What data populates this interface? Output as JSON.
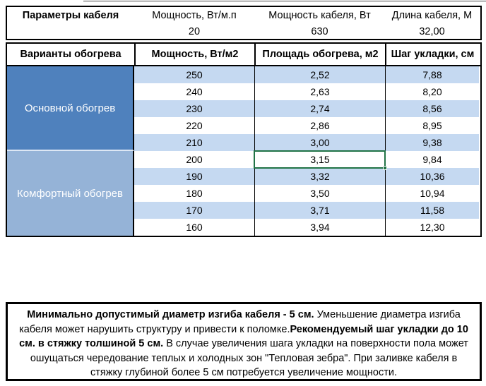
{
  "colors": {
    "primary_blue": "#4F81BD",
    "comfort_blue": "#95B3D7",
    "band_blue": "#C5D9F1",
    "row_white": "#FFFFFF",
    "selection_green": "#217346",
    "border_black": "#000000"
  },
  "top_info": {
    "title": "Параметры кабеля",
    "columns": [
      {
        "label": "Мощность, Вт/м.п",
        "value": "20"
      },
      {
        "label": "Мощность кабеля, Вт",
        "value": "630"
      },
      {
        "label": "Длина кабеля, М",
        "value": "32,00"
      }
    ]
  },
  "heating_table": {
    "headers": [
      "Варианты обогрева",
      "Мощность, Вт/м2",
      "Площадь обогрева, м2",
      "Шаг укладки, см"
    ],
    "groups": [
      {
        "label": "Основной обогрев",
        "color": "#4F81BD",
        "rows": [
          [
            "250",
            "2,52",
            "7,88"
          ],
          [
            "240",
            "2,63",
            "8,20"
          ],
          [
            "230",
            "2,74",
            "8,56"
          ],
          [
            "220",
            "2,86",
            "8,95"
          ],
          [
            "210",
            "3,00",
            "9,38"
          ]
        ]
      },
      {
        "label": "Комфортный обогрев",
        "color": "#95B3D7",
        "rows": [
          [
            "200",
            "3,15",
            "9,84"
          ],
          [
            "190",
            "3,32",
            "10,36"
          ],
          [
            "180",
            "3,50",
            "10,94"
          ],
          [
            "170",
            "3,71",
            "11,58"
          ],
          [
            "160",
            "3,94",
            "12,30"
          ]
        ]
      }
    ],
    "selected_cell": {
      "group_index": 1,
      "row_index": 0,
      "col_index": 1,
      "value": "3,15"
    }
  },
  "note": {
    "segments": [
      {
        "text": "Минимально допустимый диаметр изгиба кабеля - 5 см.",
        "bold": true
      },
      {
        "text": "  Уменьшение диаметра изгиба кабеля может нарушить структуру и привести к поломке.",
        "bold": false
      },
      {
        "text": "Рекомендуемый шаг укладки до 10 см. в стяжку толшиной 5 см.",
        "bold": true
      },
      {
        "text": " В  случае увеличения шага укладки на поверхности пола может ошущаться чередование теплых и холодных зон \"Тепловая зебра\". При заливке кабеля в стяжку глубиной более 5 см потребуется увеличение мощности.",
        "bold": false
      }
    ]
  }
}
